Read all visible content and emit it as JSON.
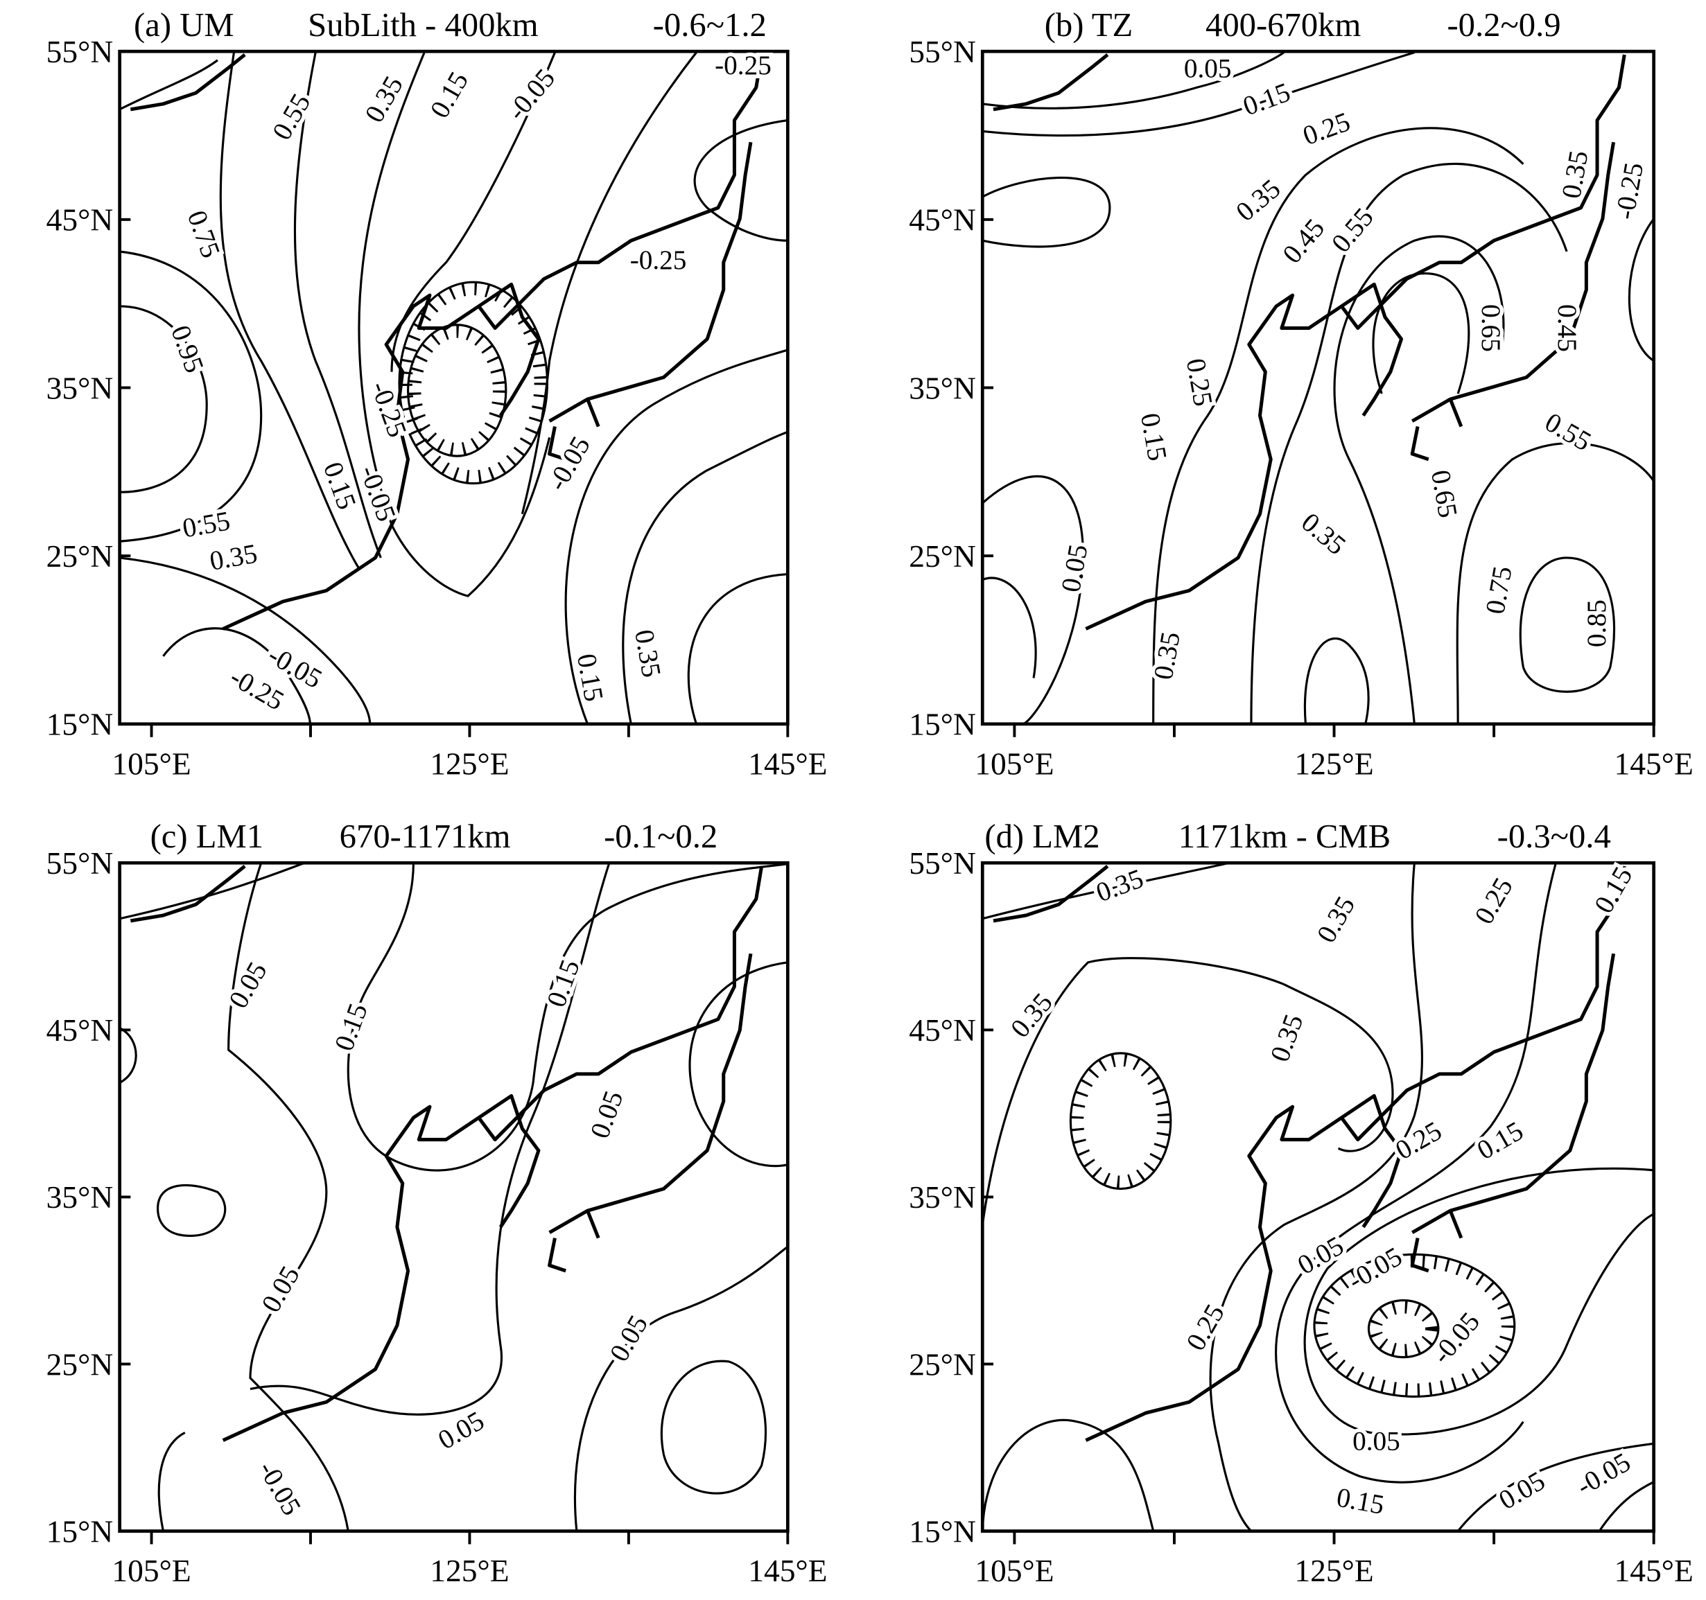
{
  "panels": [
    {
      "label": "(a) UM",
      "layer": "SubLith - 400km",
      "range": "-0.6~1.2",
      "yticks": [
        "55°N",
        "45°N",
        "35°N",
        "25°N",
        "15°N"
      ],
      "xticks": [
        "105°E",
        "125°E",
        "145°E"
      ],
      "contour_labels": [
        "-0.25",
        "0.55",
        "0.35",
        "0.15",
        "-0.05",
        "0.75",
        "-0.25",
        "0.95",
        "-0.25",
        "0.15",
        "-0.05",
        "0.55",
        "0.35",
        "-0.05",
        "-0.25",
        "-0.05",
        "0.15",
        "0.35"
      ]
    },
    {
      "label": "(b) TZ",
      "layer": "400-670km",
      "range": "-0.2~0.9",
      "yticks": [
        "55°N",
        "45°N",
        "35°N",
        "25°N",
        "15°N"
      ],
      "xticks": [
        "105°E",
        "125°E",
        "145°E"
      ],
      "contour_labels": [
        "0.05",
        "0.15",
        "0.25",
        "0.35",
        "0.45",
        "0.55",
        "0.35",
        "-0.25",
        "0.65",
        "0.45",
        "0.25",
        "0.15",
        "0.55",
        "0.65",
        "0.35",
        "0.05",
        "0.75",
        "0.85",
        "0.35"
      ]
    },
    {
      "label": "(c) LM1",
      "layer": "670-1171km",
      "range": "-0.1~0.2",
      "yticks": [
        "55°N",
        "45°N",
        "35°N",
        "25°N",
        "15°N"
      ],
      "xticks": [
        "105°E",
        "125°E",
        "145°E"
      ],
      "contour_labels": [
        "0.05",
        "0.15",
        "0.15",
        "0.05",
        "0.05",
        "0.05",
        "0.05",
        "-0.05"
      ]
    },
    {
      "label": "(d) LM2",
      "layer": "1171km - CMB",
      "range": "-0.3~0.4",
      "yticks": [
        "55°N",
        "45°N",
        "35°N",
        "25°N",
        "15°N"
      ],
      "xticks": [
        "105°E",
        "125°E",
        "145°E"
      ],
      "contour_labels": [
        "0.35",
        "0.35",
        "0.25",
        "0.15",
        "0.35",
        "0.35",
        "0.25",
        "0.15",
        "0.05",
        "-0.05",
        "-0.05",
        "0.25",
        "0.05",
        "0.15",
        "0.05",
        "-0.05"
      ]
    }
  ]
}
